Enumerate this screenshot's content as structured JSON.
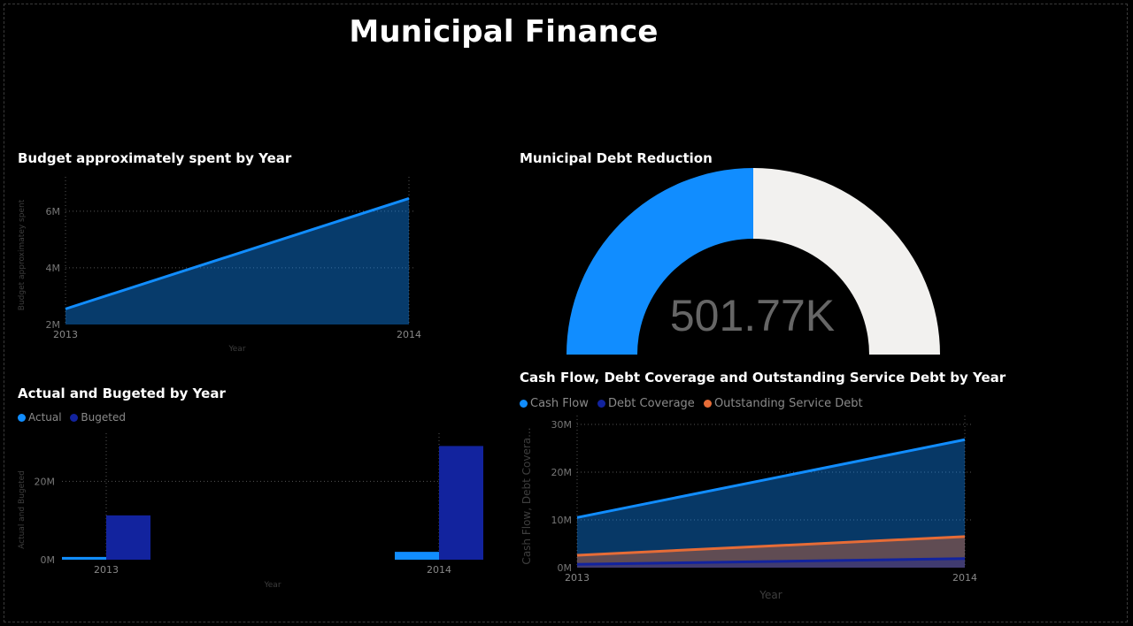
{
  "page": {
    "title": "Municipal Finance"
  },
  "budget_chart": {
    "title": "Budget approximately spent by Year"
  },
  "actual_chart": {
    "title": "Actual and Bugeted by Year",
    "legend": [
      {
        "label": "Actual",
        "color": "#118DFF"
      },
      {
        "label": "Bugeted",
        "color": "#12239E"
      }
    ]
  },
  "gauge": {
    "title": "Municipal Debt Reduction",
    "value_label": "501.77K",
    "fill_color": "#118DFF",
    "track_color": "#F2F1EF"
  },
  "cashflow_chart": {
    "title": "Cash Flow, Debt Coverage and Outstanding Service Debt by Year",
    "legend": [
      {
        "label": "Cash Flow",
        "color": "#118DFF"
      },
      {
        "label": "Debt Coverage",
        "color": "#12239E"
      },
      {
        "label": "Outstanding Service Debt",
        "color": "#E66C37"
      }
    ]
  },
  "chart_data": [
    {
      "id": "budget",
      "type": "area",
      "title": "Budget approximately spent by Year",
      "xlabel": "Year",
      "ylabel": "Budget approximatey spent",
      "x": [
        "2013",
        "2014"
      ],
      "yticks": [
        {
          "v": 2000000,
          "label": "2M"
        },
        {
          "v": 4000000,
          "label": "4M"
        },
        {
          "v": 6000000,
          "label": "6M"
        }
      ],
      "ylim": [
        2000000,
        6900000
      ],
      "series": [
        {
          "values": [
            2550000,
            6450000
          ],
          "color": "#118DFF"
        }
      ],
      "grid": true
    },
    {
      "id": "actual",
      "type": "bar",
      "title": "Actual and Bugeted by Year",
      "xlabel": "Year",
      "ylabel": "Actual and Bugeted",
      "categories": [
        "2013",
        "2014"
      ],
      "yticks": [
        {
          "v": 0,
          "label": "0M"
        },
        {
          "v": 20000000,
          "label": "20M"
        }
      ],
      "ylim": [
        0,
        30000000
      ],
      "series": [
        {
          "name": "Actual",
          "values": [
            700000,
            2000000
          ],
          "color": "#118DFF"
        },
        {
          "name": "Bugeted",
          "values": [
            11300000,
            29000000
          ],
          "color": "#12239E"
        }
      ],
      "grid": true
    },
    {
      "id": "gauge",
      "type": "gauge",
      "title": "Municipal Debt Reduction",
      "value": 501770,
      "fill_fraction": 0.5
    },
    {
      "id": "cashflow",
      "type": "area",
      "title": "Cash Flow, Debt Coverage and Outstanding Service Debt by Year",
      "xlabel": "Year",
      "ylabel": "Cash Flow, Debt Covera...",
      "x": [
        "2013",
        "2014"
      ],
      "yticks": [
        {
          "v": 0,
          "label": "0M"
        },
        {
          "v": 10000000,
          "label": "10M"
        },
        {
          "v": 20000000,
          "label": "20M"
        },
        {
          "v": 30000000,
          "label": "30M"
        }
      ],
      "ylim": [
        0,
        30000000
      ],
      "series": [
        {
          "name": "Cash Flow",
          "values": [
            10500000,
            26800000
          ],
          "color": "#118DFF"
        },
        {
          "name": "Outstanding Service Debt",
          "values": [
            2600000,
            6500000
          ],
          "color": "#E66C37"
        },
        {
          "name": "Debt Coverage",
          "values": [
            700000,
            1900000
          ],
          "color": "#12239E"
        }
      ],
      "grid": true
    }
  ]
}
